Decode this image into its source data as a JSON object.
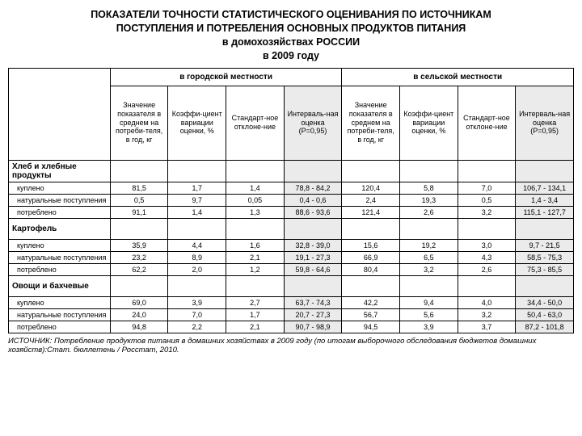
{
  "title_lines": [
    "ПОКАЗАТЕЛИ ТОЧНОСТИ СТАТИСТИЧЕСКОГО ОЦЕНИВАНИЯ  ПО ИСТОЧНИКАМ",
    "ПОСТУПЛЕНИЯ И ПОТРЕБЛЕНИЯ ОСНОВНЫХ ПРОДУКТОВ ПИТАНИЯ",
    "в домохозяйствах РОССИИ",
    "в 2009 году"
  ],
  "area_headers": {
    "urban": "в городской  местности",
    "rural": "в сельской  местности"
  },
  "col_headers": {
    "value": "Значение показателя в среднем на потреби-теля,\nв год, кг",
    "cv": "Коэффи-циент вариации оценки, %",
    "sd": "Стандарт-ное отклоне-ние",
    "ci": "Интерваль-ная оценка (Р=0,95)"
  },
  "sections": [
    {
      "name": "Хлеб и хлебные продукты",
      "rows": [
        {
          "name": "куплено",
          "urban": [
            "81,5",
            "1,7",
            "1,4",
            "78,8 - 84,2"
          ],
          "rural": [
            "120,4",
            "5,8",
            "7,0",
            "106,7 - 134,1"
          ]
        },
        {
          "name": "натуральные поступления",
          "urban": [
            "0,5",
            "9,7",
            "0,05",
            "0,4 - 0,6"
          ],
          "rural": [
            "2,4",
            "19,3",
            "0,5",
            "1,4 - 3,4"
          ]
        },
        {
          "name": "потреблено",
          "urban": [
            "91,1",
            "1,4",
            "1,3",
            "88,6 - 93,6"
          ],
          "rural": [
            "121,4",
            "2,6",
            "3,2",
            "115,1 - 127,7"
          ]
        }
      ]
    },
    {
      "name": "Картофель",
      "rows": [
        {
          "name": "куплено",
          "urban": [
            "35,9",
            "4,4",
            "1,6",
            "32,8 - 39,0"
          ],
          "rural": [
            "15,6",
            "19,2",
            "3,0",
            "9,7 - 21,5"
          ]
        },
        {
          "name": "натуральные поступления",
          "urban": [
            "23,2",
            "8,9",
            "2,1",
            "19,1 - 27,3"
          ],
          "rural": [
            "66,9",
            "6,5",
            "4,3",
            "58,5 - 75,3"
          ]
        },
        {
          "name": "потреблено",
          "urban": [
            "62,2",
            "2,0",
            "1,2",
            "59,8 - 64,6"
          ],
          "rural": [
            "80,4",
            "3,2",
            "2,6",
            "75,3 - 85,5"
          ]
        }
      ]
    },
    {
      "name": "Овощи и бахчевые",
      "rows": [
        {
          "name": "куплено",
          "urban": [
            "69,0",
            "3,9",
            "2,7",
            "63,7 - 74,3"
          ],
          "rural": [
            "42,2",
            "9,4",
            "4,0",
            "34,4 - 50,0"
          ]
        },
        {
          "name": "натуральные поступления",
          "urban": [
            "24,0",
            "7,0",
            "1,7",
            "20,7 - 27,3"
          ],
          "rural": [
            "56,7",
            "5,6",
            "3,2",
            "50,4 - 63,0"
          ]
        },
        {
          "name": "потреблено",
          "urban": [
            "94,8",
            "2,2",
            "2,1",
            "90,7 - 98,9"
          ],
          "rural": [
            "94,5",
            "3,9",
            "3,7",
            "87,2 - 101,8"
          ]
        }
      ]
    }
  ],
  "source": {
    "label": "ИСТОЧНИК:",
    "text": "Потребление продуктов питания в домашних хозяйствах в  2009 году (по итогам выборочного обследования бюджетов домашних хозяйств):Стат. бюллетень / Росстат, 2010."
  },
  "colors": {
    "shaded_bg": "#ebebeb",
    "border": "#000000",
    "text": "#000000",
    "page_bg": "#ffffff"
  },
  "fonts": {
    "title_pt": 12.5,
    "header_pt": 9,
    "cell_pt": 9,
    "source_pt": 9.5
  }
}
